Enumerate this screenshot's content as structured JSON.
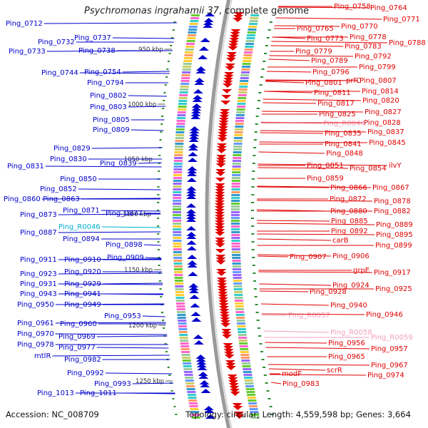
{
  "title": {
    "organism": "Psychromonas ingrahamii 37",
    "suffix": ", complete genome"
  },
  "footer": {
    "accession": "Accession: NC_008709",
    "stats": "Topology: circular; Length: 4,559,598 bp; Genes: 3,664"
  },
  "colors": {
    "forward_strand": "#e00000",
    "reverse_strand": "#0000cc",
    "rna": "#00b0d0",
    "pseudo": "#f0a0c0",
    "backbone": "#888888",
    "tick": "#2e8b2e"
  },
  "kbp_ticks": [
    "950 kbp",
    "1000 kbp",
    "1050 kbp",
    "1100 kbp",
    "1150 kbp",
    "1200 kbp",
    "1250 kbp"
  ],
  "left_labels": [
    {
      "text": "Ping_0712",
      "color": "#0000cc"
    },
    {
      "text": "Ping_0732",
      "color": "#0000cc"
    },
    {
      "text": "Ping_0737",
      "color": "#0000cc"
    },
    {
      "text": "Ping_0733",
      "color": "#0000cc"
    },
    {
      "text": "Ping_0738",
      "color": "#0000cc"
    },
    {
      "text": "Ping_0744",
      "color": "#0000cc"
    },
    {
      "text": "Ping_0754",
      "color": "#0000cc"
    },
    {
      "text": "Ping_0794",
      "color": "#0000cc"
    },
    {
      "text": "Ping_0802",
      "color": "#0000cc"
    },
    {
      "text": "Ping_0803",
      "color": "#0000cc"
    },
    {
      "text": "Ping_0805",
      "color": "#0000cc"
    },
    {
      "text": "Ping_0809",
      "color": "#0000cc"
    },
    {
      "text": "Ping_0829",
      "color": "#0000cc"
    },
    {
      "text": "Ping_0830",
      "color": "#0000cc"
    },
    {
      "text": "Ping_0831",
      "color": "#0000cc"
    },
    {
      "text": "Ping_0839",
      "color": "#0000cc"
    },
    {
      "text": "Ping_0850",
      "color": "#0000cc"
    },
    {
      "text": "Ping_0852",
      "color": "#0000cc"
    },
    {
      "text": "Ping_0860",
      "color": "#0000cc"
    },
    {
      "text": "Ping_0863",
      "color": "#0000cc"
    },
    {
      "text": "Ping_0871",
      "color": "#0000cc"
    },
    {
      "text": "Ping_0873",
      "color": "#0000cc"
    },
    {
      "text": "Ping_0877",
      "color": "#0000cc"
    },
    {
      "text": "Ping_R0046",
      "color": "#00b0d0"
    },
    {
      "text": "Ping_0887",
      "color": "#0000cc"
    },
    {
      "text": "Ping_0894",
      "color": "#0000cc"
    },
    {
      "text": "Ping_0898",
      "color": "#0000cc"
    },
    {
      "text": "Ping_0911",
      "color": "#0000cc"
    },
    {
      "text": "Ping_0910",
      "color": "#0000cc"
    },
    {
      "text": "Ping_0909",
      "color": "#0000cc"
    },
    {
      "text": "Ping_0923",
      "color": "#0000cc"
    },
    {
      "text": "Ping_0920",
      "color": "#0000cc"
    },
    {
      "text": "Ping_0931",
      "color": "#0000cc"
    },
    {
      "text": "Ping_0929",
      "color": "#0000cc"
    },
    {
      "text": "Ping_0943",
      "color": "#0000cc"
    },
    {
      "text": "Ping_0941",
      "color": "#0000cc"
    },
    {
      "text": "Ping_0950",
      "color": "#0000cc"
    },
    {
      "text": "Ping_0949",
      "color": "#0000cc"
    },
    {
      "text": "Ping_0953",
      "color": "#0000cc"
    },
    {
      "text": "Ping_0961",
      "color": "#0000cc"
    },
    {
      "text": "Ping_0960",
      "color": "#0000cc"
    },
    {
      "text": "Ping_0970",
      "color": "#0000cc"
    },
    {
      "text": "Ping_0969",
      "color": "#0000cc"
    },
    {
      "text": "Ping_0978",
      "color": "#0000cc"
    },
    {
      "text": "Ping_0977",
      "color": "#0000cc"
    },
    {
      "text": "mtlR",
      "color": "#0000cc"
    },
    {
      "text": "Ping_0982",
      "color": "#0000cc"
    },
    {
      "text": "Ping_0992",
      "color": "#0000cc"
    },
    {
      "text": "Ping_0993",
      "color": "#0000cc"
    },
    {
      "text": "Ping_1013",
      "color": "#0000cc"
    },
    {
      "text": "Ping_1011",
      "color": "#0000cc"
    }
  ],
  "right_labels": [
    {
      "text": "Ping_0758",
      "color": "#e00000"
    },
    {
      "text": "Ping_0764",
      "color": "#e00000"
    },
    {
      "text": "Ping_0771",
      "color": "#e00000"
    },
    {
      "text": "Ping_0765",
      "color": "#e00000"
    },
    {
      "text": "Ping_0770",
      "color": "#e00000"
    },
    {
      "text": "Ping_0773",
      "color": "#e00000"
    },
    {
      "text": "Ping_0778",
      "color": "#e00000"
    },
    {
      "text": "Ping_0783",
      "color": "#e00000"
    },
    {
      "text": "Ping_0788",
      "color": "#e00000"
    },
    {
      "text": "Ping_0779",
      "color": "#e00000"
    },
    {
      "text": "Ping_0792",
      "color": "#e00000"
    },
    {
      "text": "Ping_0789",
      "color": "#e00000"
    },
    {
      "text": "Ping_0799",
      "color": "#e00000"
    },
    {
      "text": "Ping_0796",
      "color": "#e00000"
    },
    {
      "text": "Ping_0801",
      "color": "#e00000"
    },
    {
      "text": "prfC",
      "color": "#e00000"
    },
    {
      "text": "Ping_0807",
      "color": "#e00000"
    },
    {
      "text": "Ping_0811",
      "color": "#e00000"
    },
    {
      "text": "Ping_0814",
      "color": "#e00000"
    },
    {
      "text": "Ping_0817",
      "color": "#e00000"
    },
    {
      "text": "Ping_0820",
      "color": "#e00000"
    },
    {
      "text": "Ping_0825",
      "color": "#e00000"
    },
    {
      "text": "Ping_0827",
      "color": "#e00000"
    },
    {
      "text": "Ping_R0044",
      "color": "#f0a0c0"
    },
    {
      "text": "Ping_0828",
      "color": "#e00000"
    },
    {
      "text": "Ping_0835",
      "color": "#e00000"
    },
    {
      "text": "Ping_0837",
      "color": "#e00000"
    },
    {
      "text": "Ping_0841",
      "color": "#e00000"
    },
    {
      "text": "Ping_0845",
      "color": "#e00000"
    },
    {
      "text": "Ping_0848",
      "color": "#e00000"
    },
    {
      "text": "Ping_0851",
      "color": "#e00000"
    },
    {
      "text": "Ping_0854",
      "color": "#e00000"
    },
    {
      "text": "ilvY",
      "color": "#e00000"
    },
    {
      "text": "Ping_0859",
      "color": "#e00000"
    },
    {
      "text": "Ping_0866",
      "color": "#e00000"
    },
    {
      "text": "Ping_0867",
      "color": "#e00000"
    },
    {
      "text": "Ping_0872",
      "color": "#e00000"
    },
    {
      "text": "Ping_0878",
      "color": "#e00000"
    },
    {
      "text": "Ping_0880",
      "color": "#e00000"
    },
    {
      "text": "Ping_0882",
      "color": "#e00000"
    },
    {
      "text": "Ping_0885",
      "color": "#e00000"
    },
    {
      "text": "Ping_0889",
      "color": "#e00000"
    },
    {
      "text": "Ping_0892",
      "color": "#e00000"
    },
    {
      "text": "Ping_0895",
      "color": "#e00000"
    },
    {
      "text": "carB",
      "color": "#e00000"
    },
    {
      "text": "Ping_0899",
      "color": "#e00000"
    },
    {
      "text": "Ping_0907",
      "color": "#e00000"
    },
    {
      "text": "Ping_0906",
      "color": "#e00000"
    },
    {
      "text": "grpE",
      "color": "#e00000"
    },
    {
      "text": "Ping_0917",
      "color": "#e00000"
    },
    {
      "text": "Ping_0924",
      "color": "#e00000"
    },
    {
      "text": "Ping_0925",
      "color": "#e00000"
    },
    {
      "text": "Ping_0928",
      "color": "#e00000"
    },
    {
      "text": "Ping_0940",
      "color": "#e00000"
    },
    {
      "text": "Ping_R0057",
      "color": "#f0a0c0"
    },
    {
      "text": "Ping_0946",
      "color": "#e00000"
    },
    {
      "text": "Ping_R0058",
      "color": "#f0a0c0"
    },
    {
      "text": "Ping_R0059",
      "color": "#f0a0c0"
    },
    {
      "text": "Ping_0956",
      "color": "#e00000"
    },
    {
      "text": "Ping_0957",
      "color": "#e00000"
    },
    {
      "text": "Ping_0965",
      "color": "#e00000"
    },
    {
      "text": "Ping_0967",
      "color": "#e00000"
    },
    {
      "text": "scrR",
      "color": "#e00000"
    },
    {
      "text": "modF",
      "color": "#e00000"
    },
    {
      "text": "Ping_0974",
      "color": "#e00000"
    },
    {
      "text": "Ping_0983",
      "color": "#e00000"
    }
  ]
}
